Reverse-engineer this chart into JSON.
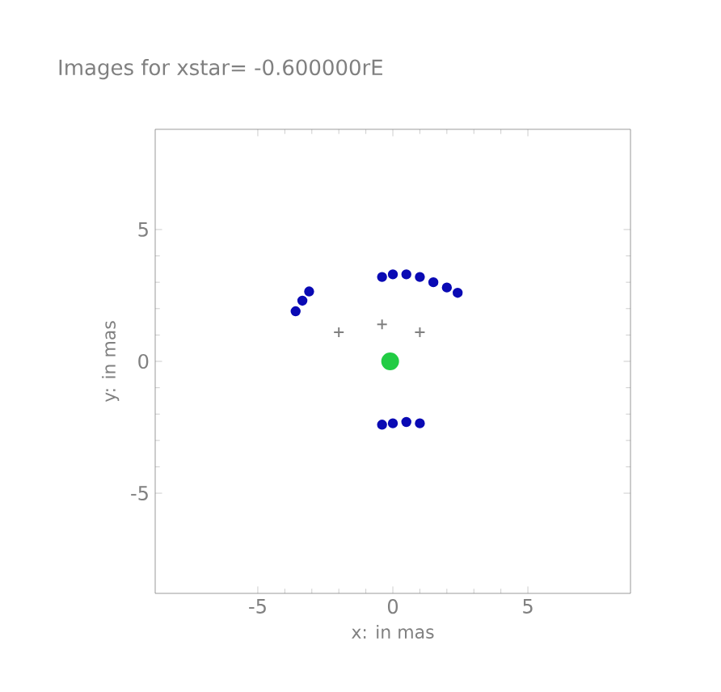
{
  "chart_data": {
    "type": "scatter",
    "title": "Images for xstar=     -0.600000rE",
    "xlabel": "x: in mas",
    "ylabel": "y: in mas",
    "xlim": [
      -8.8,
      8.8
    ],
    "ylim": [
      -8.8,
      8.8
    ],
    "xticks": [
      -5,
      0,
      5
    ],
    "yticks": [
      -5,
      0,
      5
    ],
    "grid": false,
    "series": [
      {
        "color": "#0a0ab4",
        "marker": "circle",
        "x": [
          -0.4,
          0,
          0.5,
          1,
          1.5,
          2,
          2.4,
          -3.6,
          -3.35,
          -3.1,
          -0.4,
          0,
          0.5,
          1.0
        ],
        "values": [
          3.2,
          3.3,
          3.3,
          3.2,
          3.0,
          2.8,
          2.6,
          1.9,
          2.3,
          2.65,
          -2.4,
          -2.35,
          -2.3,
          -2.35
        ]
      },
      {
        "color": "#22cc44",
        "marker": "circle",
        "x": [
          -0.1
        ],
        "values": [
          0
        ]
      },
      {
        "color": "#808080",
        "marker": "cross",
        "x": [
          -2.0,
          1.0,
          -0.4
        ],
        "values": [
          1.1,
          1.1,
          1.4
        ]
      }
    ]
  }
}
